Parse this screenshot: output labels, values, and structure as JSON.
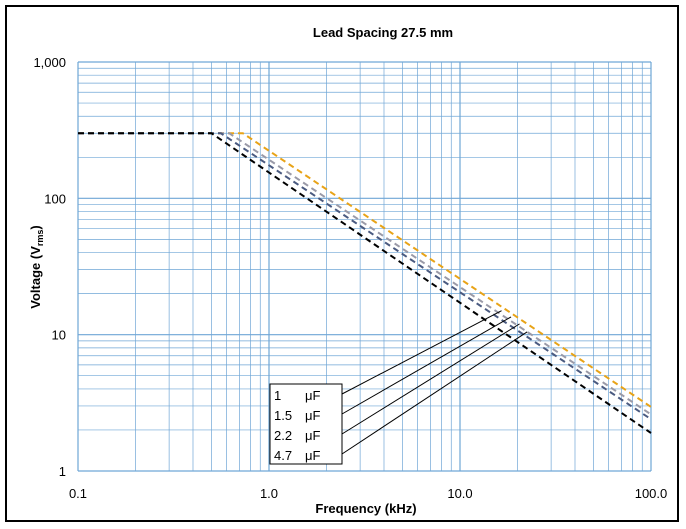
{
  "chart_data": {
    "type": "line",
    "title": "Lead Spacing 27.5 mm",
    "xlabel": "Frequency (kHz)",
    "ylabel": {
      "main": "Voltage (V",
      "sub": "rms",
      "close": ")"
    },
    "x_scale": "log",
    "y_scale": "log",
    "xlim": [
      0.1,
      100
    ],
    "ylim": [
      1,
      1000
    ],
    "grid": true,
    "x_ticks": [
      {
        "value": 0.1,
        "label": "0.1"
      },
      {
        "value": 1,
        "label": "1.0"
      },
      {
        "value": 10,
        "label": "10.0"
      },
      {
        "value": 100,
        "label": "100.0"
      }
    ],
    "y_ticks": [
      {
        "value": 1,
        "label": "1"
      },
      {
        "value": 10,
        "label": "10"
      },
      {
        "value": 100,
        "label": "100"
      },
      {
        "value": 1000,
        "label": "1,000"
      }
    ],
    "legend": {
      "placement": "bottom-center"
    },
    "series": [
      {
        "name": "1 μF",
        "color": "#E8A317",
        "x": [
          0.1,
          0.73,
          100
        ],
        "y": [
          300,
          300,
          2.95
        ]
      },
      {
        "name": "1.5 μF",
        "color": "#9A9AA8",
        "x": [
          0.1,
          0.62,
          100
        ],
        "y": [
          300,
          300,
          2.6
        ]
      },
      {
        "name": "2.2 μF",
        "color": "#4A5A80",
        "x": [
          0.1,
          0.56,
          100
        ],
        "y": [
          300,
          300,
          2.4
        ]
      },
      {
        "name": "4.7 μF",
        "color": "#000000",
        "x": [
          0.1,
          0.5,
          100
        ],
        "y": [
          300,
          300,
          1.9
        ]
      }
    ],
    "legend_pointers": [
      {
        "x": 16.5,
        "y": 15
      },
      {
        "x": 18.5,
        "y": 13.5
      },
      {
        "x": 20.5,
        "y": 12
      },
      {
        "x": 22.5,
        "y": 10.5
      }
    ]
  }
}
